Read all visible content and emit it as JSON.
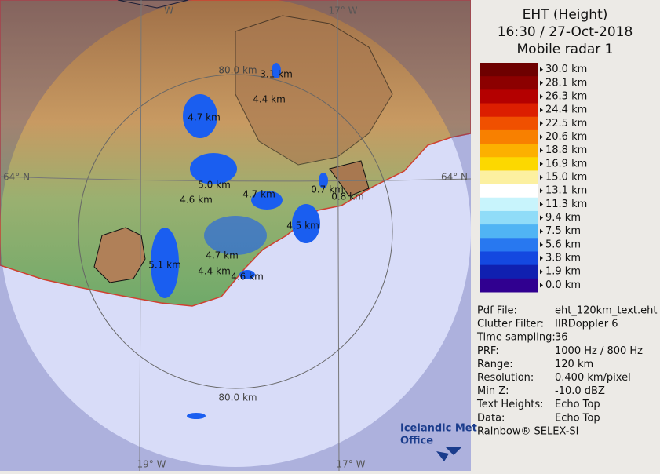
{
  "header": {
    "title": "EHT (Height)",
    "time": "16:30 / 27-Oct-2018",
    "radar": "Mobile radar 1"
  },
  "legend": {
    "labels": [
      "30.0 km",
      "28.1 km",
      "26.3 km",
      "24.4 km",
      "22.5 km",
      "20.6 km",
      "18.8 km",
      "16.9 km",
      "15.0 km",
      "13.1 km",
      "11.3 km",
      "9.4 km",
      "7.5 km",
      "5.6 km",
      "3.8 km",
      "1.9 km",
      "0.0 km"
    ],
    "colors": [
      "#6e0000",
      "#8c0000",
      "#b40000",
      "#dc1e00",
      "#f05000",
      "#f88000",
      "#fcb000",
      "#fcd800",
      "#fcf0a0",
      "#ffffff",
      "#c8f4fc",
      "#90dcf8",
      "#50b4f4",
      "#2878f0",
      "#1448e0",
      "#1020b0",
      "#300090"
    ]
  },
  "info": [
    [
      "Pdf File:",
      "eht_120km_text.eht"
    ],
    [
      "Clutter Filter:",
      "IIRDoppler 6"
    ],
    [
      "Time sampling:",
      "36"
    ],
    [
      "PRF:",
      "1000 Hz / 800 Hz"
    ],
    [
      "Range:",
      "120 km"
    ],
    [
      "Resolution:",
      "0.400 km/pixel"
    ],
    [
      "Min Z:",
      "-10.0 dBZ"
    ],
    [
      "Text Heights:",
      "Echo Top"
    ],
    [
      "Data:",
      "Echo Top"
    ]
  ],
  "footer": "Rainbow® SELEX-SI",
  "map": {
    "grid_labels": [
      "W",
      "17° W",
      "64° N",
      "64° N",
      "19° W",
      "17° W"
    ],
    "range_labels": [
      "80.0 km",
      "80.0 km"
    ],
    "echo_tops": [
      "3.1 km",
      "4.4 km",
      "4.7 km",
      "5.0 km",
      "4.7 km",
      "0.7 km",
      "0.8 km",
      "4.6 km",
      "4.5 km",
      "4.7 km",
      "5.1 km",
      "4.4 km",
      "4.6 km"
    ],
    "logo": [
      "Icelandic Met",
      "Office"
    ]
  }
}
